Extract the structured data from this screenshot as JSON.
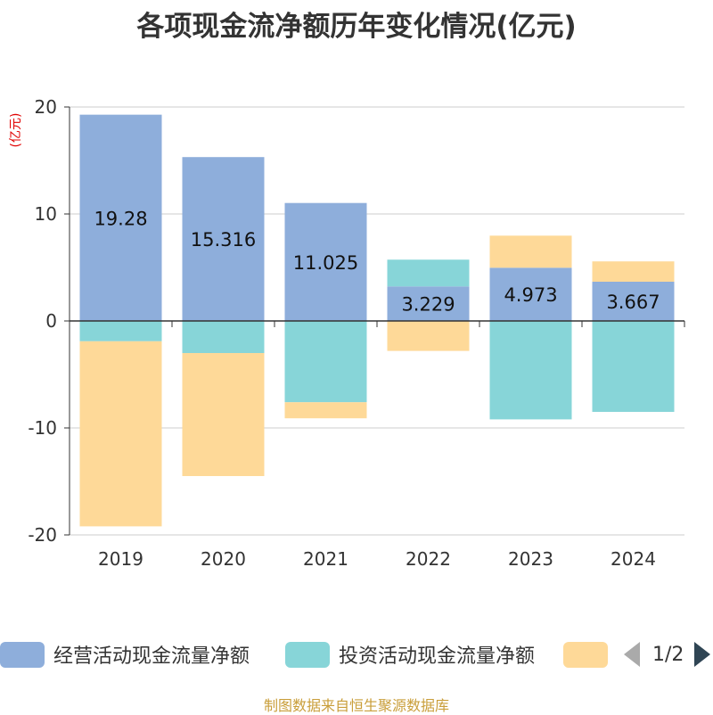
{
  "chart_data": {
    "type": "bar",
    "stacked": true,
    "title": "各项现金流净额历年变化情况(亿元)",
    "ylabel": "(亿元)",
    "xlabel": "",
    "categories": [
      "2019",
      "2020",
      "2021",
      "2022",
      "2023",
      "2024"
    ],
    "ylim": [
      -20,
      20
    ],
    "yticks": [
      20,
      10,
      0,
      -10,
      -20
    ],
    "series": [
      {
        "name": "经营活动现金流量净额",
        "color": "#8eaedb",
        "values": [
          19.28,
          15.316,
          11.025,
          3.229,
          4.973,
          3.667
        ],
        "labels": [
          "19.28",
          "15.316",
          "11.025",
          "3.229",
          "4.973",
          "3.667"
        ]
      },
      {
        "name": "投资活动现金流量净额",
        "color": "#87d5d8",
        "values": [
          -1.9,
          -3.0,
          -7.6,
          2.5,
          -9.2,
          -8.5
        ]
      },
      {
        "name": "",
        "color": "#fed998",
        "values": [
          -17.3,
          -11.5,
          -1.5,
          -2.8,
          3.0,
          1.9
        ]
      }
    ]
  },
  "legend": {
    "items": [
      {
        "label": "经营活动现金流量净额",
        "color": "#8eaedb"
      },
      {
        "label": "投资活动现金流量净额",
        "color": "#87d5d8"
      },
      {
        "label": "",
        "color": "#fed998"
      }
    ],
    "page_indicator": "1/2"
  },
  "source": "制图数据来自恒生聚源数据库",
  "colors": {
    "axis": "#333333",
    "grid": "#cccccc",
    "unit": "#e00000",
    "source": "#c99e3a"
  }
}
